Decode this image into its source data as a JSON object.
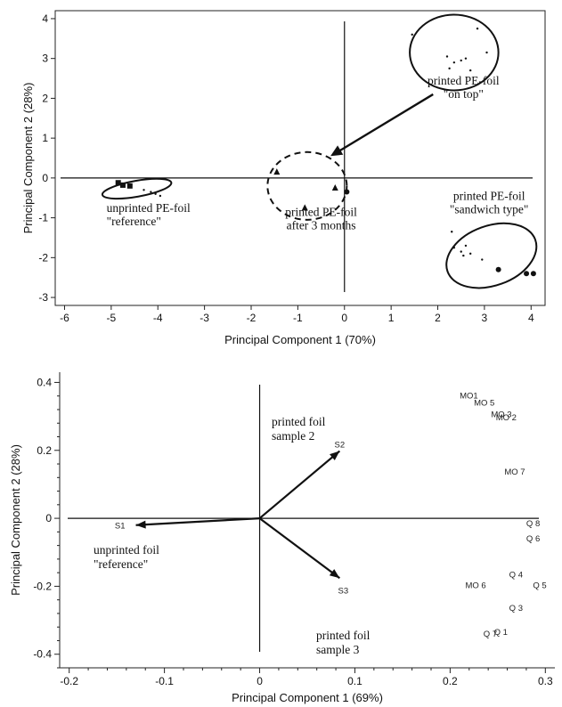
{
  "chart_data": [
    {
      "type": "scatter",
      "xlabel": "Principal Component 1 (70%)",
      "ylabel": "Principal Component 2 (28%)",
      "xlim": [
        -6.2,
        4.3
      ],
      "ylim": [
        -3.2,
        4.2
      ],
      "x_ticks": [
        -6,
        -5,
        -4,
        -3,
        -2,
        -1,
        0,
        1,
        2,
        3,
        4
      ],
      "y_ticks": [
        4,
        3,
        2,
        1,
        0,
        -1,
        -2,
        -3
      ],
      "groups": [
        {
          "label_lines": [
            "unprinted PE-foil",
            "\"reference\""
          ],
          "points": [
            {
              "x": -4.85,
              "y": -0.12,
              "marker": "square"
            },
            {
              "x": -4.75,
              "y": -0.18,
              "marker": "square"
            },
            {
              "x": -4.6,
              "y": -0.2,
              "marker": "square"
            },
            {
              "x": -4.3,
              "y": -0.3,
              "marker": "dot"
            },
            {
              "x": -4.15,
              "y": -0.35,
              "marker": "dot"
            },
            {
              "x": -4.05,
              "y": -0.4,
              "marker": "dot"
            },
            {
              "x": -3.95,
              "y": -0.45,
              "marker": "dot"
            }
          ]
        },
        {
          "label_lines": [
            "printed PE-foil",
            "after 3 months"
          ],
          "points": [
            {
              "x": -1.45,
              "y": 0.15,
              "marker": "triangle"
            },
            {
              "x": -0.85,
              "y": -0.75,
              "marker": "triangle"
            },
            {
              "x": -0.2,
              "y": -0.25,
              "marker": "triangle"
            },
            {
              "x": 0.05,
              "y": -0.35,
              "marker": "circle"
            }
          ]
        },
        {
          "label_lines": [
            "printed PE-foil",
            "\"on top\""
          ],
          "points": [
            {
              "x": 1.45,
              "y": 3.6,
              "marker": "dot"
            },
            {
              "x": 2.2,
              "y": 3.05,
              "marker": "dot"
            },
            {
              "x": 2.35,
              "y": 2.9,
              "marker": "dot"
            },
            {
              "x": 2.5,
              "y": 2.95,
              "marker": "dot"
            },
            {
              "x": 2.6,
              "y": 3.0,
              "marker": "dot"
            },
            {
              "x": 2.25,
              "y": 2.75,
              "marker": "dot"
            },
            {
              "x": 2.7,
              "y": 2.7,
              "marker": "dot"
            },
            {
              "x": 2.85,
              "y": 3.75,
              "marker": "dot"
            },
            {
              "x": 3.05,
              "y": 3.15,
              "marker": "dot"
            }
          ]
        },
        {
          "label_lines": [
            "printed PE-foil",
            "\"sandwich type\""
          ],
          "points": [
            {
              "x": 2.3,
              "y": -1.35,
              "marker": "dot"
            },
            {
              "x": 2.35,
              "y": -1.75,
              "marker": "dot"
            },
            {
              "x": 2.5,
              "y": -1.85,
              "marker": "dot"
            },
            {
              "x": 2.6,
              "y": -1.7,
              "marker": "dot"
            },
            {
              "x": 2.55,
              "y": -1.95,
              "marker": "dot"
            },
            {
              "x": 2.7,
              "y": -1.9,
              "marker": "dot"
            },
            {
              "x": 2.95,
              "y": -2.05,
              "marker": "dot"
            },
            {
              "x": 3.3,
              "y": -2.3,
              "marker": "circle"
            },
            {
              "x": 3.9,
              "y": -2.4,
              "marker": "circle"
            },
            {
              "x": 4.05,
              "y": -2.4,
              "marker": "circle"
            }
          ]
        }
      ]
    },
    {
      "type": "biplot",
      "xlabel": "Principal Component 1 (69%)",
      "ylabel": "Principal Component 2 (28%)",
      "xlim": [
        -0.21,
        0.31
      ],
      "ylim": [
        -0.44,
        0.43
      ],
      "x_ticks": [
        -0.2,
        -0.1,
        0,
        0.1,
        0.2,
        0.3
      ],
      "x_tick_labels": [
        "-0.2",
        "-0.1",
        "0",
        "0.1",
        "0.2",
        "0.3"
      ],
      "y_ticks": [
        0.4,
        0.2,
        0,
        -0.2,
        -0.4
      ],
      "y_tick_labels": [
        "0.4",
        "0.2",
        "0",
        "-0.2",
        "-0.4"
      ],
      "vectors": [
        {
          "label": "S1",
          "x": -0.13,
          "y": -0.02,
          "caption_lines": [
            "unprinted foil",
            "\"reference\""
          ]
        },
        {
          "label": "S2",
          "x": 0.084,
          "y": 0.198,
          "caption_lines": [
            "printed foil",
            "sample 2"
          ]
        },
        {
          "label": "S3",
          "x": 0.084,
          "y": -0.176,
          "caption_lines": [
            "printed foil",
            "sample 3"
          ]
        }
      ],
      "variables": [
        {
          "label": "MO1",
          "x": 0.21,
          "y": 0.36
        },
        {
          "label": "MO 5",
          "x": 0.225,
          "y": 0.34
        },
        {
          "label": "MO 3",
          "x": 0.243,
          "y": 0.305
        },
        {
          "label": "MO 2",
          "x": 0.248,
          "y": 0.297
        },
        {
          "label": "MO 7",
          "x": 0.257,
          "y": 0.137
        },
        {
          "label": "Q 8",
          "x": 0.28,
          "y": -0.016
        },
        {
          "label": "Q 6",
          "x": 0.28,
          "y": -0.06
        },
        {
          "label": "Q 4",
          "x": 0.262,
          "y": -0.166
        },
        {
          "label": "MO 6",
          "x": 0.216,
          "y": -0.198
        },
        {
          "label": "Q 5",
          "x": 0.287,
          "y": -0.198
        },
        {
          "label": "Q 3",
          "x": 0.262,
          "y": -0.265
        },
        {
          "label": "Q 1",
          "x": 0.246,
          "y": -0.335
        },
        {
          "label": "Q 7",
          "x": 0.235,
          "y": -0.34
        }
      ]
    }
  ]
}
